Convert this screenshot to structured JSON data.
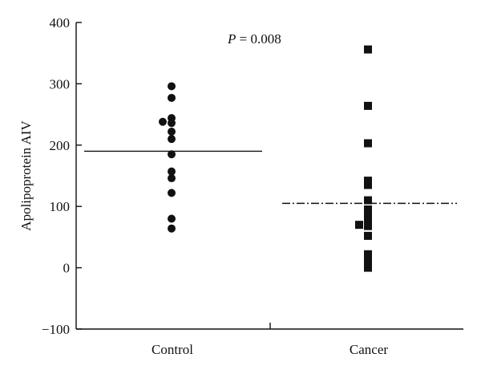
{
  "chart_data": {
    "type": "scatter",
    "title": "",
    "xlabel": "",
    "ylabel": "Apolipoprotein AIV",
    "ylim": [
      -100,
      400
    ],
    "yticks": [
      -100,
      0,
      100,
      200,
      300,
      400
    ],
    "categories": [
      "Control",
      "Cancer"
    ],
    "annotation": {
      "p_symbol": "P",
      "text": " = 0.008"
    },
    "series": [
      {
        "category": "Control",
        "marker": "circle",
        "points": [
          {
            "dx": 0,
            "y": 296
          },
          {
            "dx": 0,
            "y": 277
          },
          {
            "dx": 0,
            "y": 244
          },
          {
            "dx": -1,
            "y": 238
          },
          {
            "dx": 0,
            "y": 236
          },
          {
            "dx": 0,
            "y": 222
          },
          {
            "dx": 0,
            "y": 210
          },
          {
            "dx": 0,
            "y": 185
          },
          {
            "dx": 0,
            "y": 157
          },
          {
            "dx": 0,
            "y": 146
          },
          {
            "dx": 0,
            "y": 122
          },
          {
            "dx": 0,
            "y": 80
          },
          {
            "dx": 0,
            "y": 64
          }
        ],
        "summary_line": {
          "value": 190,
          "style": "solid"
        }
      },
      {
        "category": "Cancer",
        "marker": "square",
        "points": [
          {
            "dx": 0,
            "y": 356
          },
          {
            "dx": 0,
            "y": 264
          },
          {
            "dx": 0,
            "y": 203
          },
          {
            "dx": 0,
            "y": 142
          },
          {
            "dx": 0,
            "y": 135
          },
          {
            "dx": 0,
            "y": 110
          },
          {
            "dx": 0,
            "y": 95
          },
          {
            "dx": 0,
            "y": 85
          },
          {
            "dx": 0,
            "y": 78
          },
          {
            "dx": -1,
            "y": 70
          },
          {
            "dx": 0,
            "y": 68
          },
          {
            "dx": 0,
            "y": 52
          },
          {
            "dx": 0,
            "y": 22
          },
          {
            "dx": 0,
            "y": 14
          },
          {
            "dx": 0,
            "y": 6
          },
          {
            "dx": 0,
            "y": 0
          }
        ],
        "summary_line": {
          "value": 105,
          "style": "dash-dot"
        }
      }
    ],
    "grid": false,
    "colors": {
      "marker": "#111111",
      "axis": "#111111"
    }
  }
}
